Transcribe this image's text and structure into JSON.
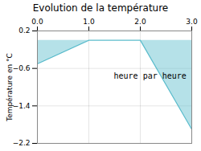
{
  "chart_data": {
    "type": "area",
    "title": "Evolution de la température",
    "xlabel": "heure par heure",
    "ylabel": "Température en °C",
    "x": [
      0,
      1,
      2,
      3
    ],
    "values": [
      -0.5,
      0.0,
      0.0,
      -1.9
    ],
    "color": "#5bbccc",
    "xlim": [
      0,
      3
    ],
    "ylim": [
      -2.2,
      0.2
    ],
    "xticks": [
      0,
      1,
      2,
      3
    ],
    "yticks": [
      0.2,
      -0.6,
      -1.4,
      -2.2
    ],
    "grid": true
  }
}
